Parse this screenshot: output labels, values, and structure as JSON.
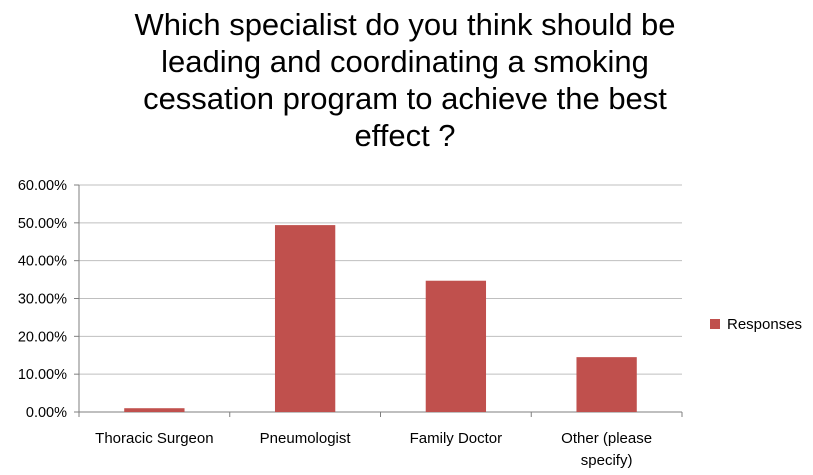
{
  "chart_data": {
    "type": "bar",
    "title": "Which specialist do you think should be leading and coordinating a smoking cessation program to achieve the best effect ?",
    "title_lines": [
      "Which specialist do you think should be",
      "leading and coordinating a smoking",
      "cessation program to achieve the best",
      "effect ?"
    ],
    "categories": [
      "Thoracic Surgeon",
      "Pneumologist",
      "Family Doctor",
      "Other (please specify)"
    ],
    "category_lines": [
      [
        "Thoracic Surgeon"
      ],
      [
        "Pneumologist"
      ],
      [
        "Family Doctor"
      ],
      [
        "Other (please",
        "specify)"
      ]
    ],
    "series": [
      {
        "name": "Responses",
        "values": [
          1.0,
          49.4,
          34.7,
          14.5
        ],
        "color": "#c0504d"
      }
    ],
    "ylim": [
      0,
      60
    ],
    "yticks": [
      0,
      10,
      20,
      30,
      40,
      50,
      60
    ],
    "ytick_labels": [
      "0.00%",
      "10.00%",
      "20.00%",
      "30.00%",
      "40.00%",
      "50.00%",
      "60.00%"
    ],
    "xlabel": "",
    "ylabel": "",
    "grid": true,
    "grid_color": "#bfbfbf",
    "legend_position": "right"
  }
}
